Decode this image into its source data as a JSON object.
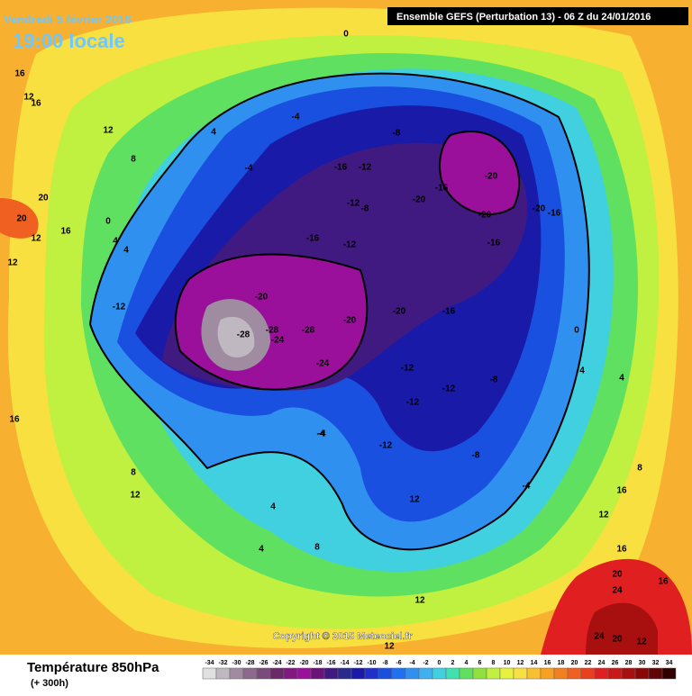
{
  "header": {
    "date": "Vendredi 5 février 2016",
    "time": "19:00 locale",
    "model": "Ensemble GEFS  (Perturbation 13)  - 06 Z du 24/01/2016"
  },
  "copyright": "Copyright © 2015 Meteociel.fr",
  "legend": {
    "title": "Température 850hPa",
    "subtitle": "(+ 300h)",
    "scale": [
      {
        "value": -34,
        "color": "#e0e0e0"
      },
      {
        "value": -32,
        "color": "#c0b8c0"
      },
      {
        "value": -30,
        "color": "#a08ca0"
      },
      {
        "value": -28,
        "color": "#8c6a8c"
      },
      {
        "value": -26,
        "color": "#7a4a7a"
      },
      {
        "value": -24,
        "color": "#6a2a6a"
      },
      {
        "value": -22,
        "color": "#801a80"
      },
      {
        "value": -20,
        "color": "#9a109a"
      },
      {
        "value": -18,
        "color": "#6a1478"
      },
      {
        "value": -16,
        "color": "#401a80"
      },
      {
        "value": -14,
        "color": "#2a2a8c"
      },
      {
        "value": -12,
        "color": "#1a1aa8"
      },
      {
        "value": -10,
        "color": "#2030c8"
      },
      {
        "value": -8,
        "color": "#1a50e0"
      },
      {
        "value": -6,
        "color": "#2070f0"
      },
      {
        "value": -4,
        "color": "#3090f0"
      },
      {
        "value": -2,
        "color": "#40b0f0"
      },
      {
        "value": 0,
        "color": "#40d0e0"
      },
      {
        "value": 2,
        "color": "#40e0b0"
      },
      {
        "value": 4,
        "color": "#60e060"
      },
      {
        "value": 6,
        "color": "#90e040"
      },
      {
        "value": 8,
        "color": "#c0f040"
      },
      {
        "value": 10,
        "color": "#e8f040"
      },
      {
        "value": 12,
        "color": "#f8e040"
      },
      {
        "value": 14,
        "color": "#f8c030"
      },
      {
        "value": 16,
        "color": "#f8a020"
      },
      {
        "value": 18,
        "color": "#f08020"
      },
      {
        "value": 20,
        "color": "#f06020"
      },
      {
        "value": 22,
        "color": "#e84020"
      },
      {
        "value": 24,
        "color": "#e02020"
      },
      {
        "value": 26,
        "color": "#c81818"
      },
      {
        "value": 28,
        "color": "#a81010"
      },
      {
        "value": 30,
        "color": "#880808"
      },
      {
        "value": 32,
        "color": "#600404"
      },
      {
        "value": 34,
        "color": "#300000"
      }
    ]
  },
  "contour_labels": [
    16,
    12,
    16,
    12,
    4,
    8,
    20,
    20,
    12,
    16,
    0,
    4,
    4,
    -4,
    -4,
    -8,
    -12,
    -16,
    -12,
    -8,
    -20,
    -16,
    -20,
    -20,
    -16,
    -20,
    -16,
    -12,
    -16,
    -20,
    -28,
    -28,
    -24,
    -28,
    -24,
    -20,
    -20,
    -16,
    -12,
    -8,
    -12,
    -12,
    -12,
    -8,
    -4,
    -4,
    0,
    4,
    4,
    8,
    12,
    16,
    20,
    24,
    24,
    20,
    16,
    12,
    12,
    8,
    4,
    12,
    16,
    12,
    8,
    4,
    12,
    12,
    16,
    0,
    -4,
    -12
  ]
}
